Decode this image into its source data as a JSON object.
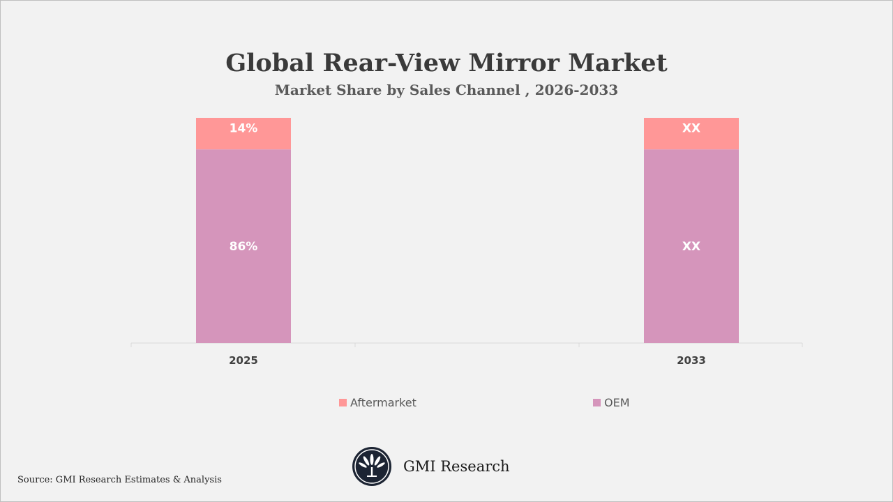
{
  "chart_data": {
    "type": "bar",
    "stacked": true,
    "title": "Global Rear-View Mirror Market",
    "subtitle": "Market Share by Sales Channel , 2026-2033",
    "categories": [
      "2025",
      "2033"
    ],
    "series": [
      {
        "name": "OEM",
        "values": [
          86,
          null
        ],
        "labels": [
          "86%",
          "XX"
        ],
        "color": "#d595bb"
      },
      {
        "name": "Aftermarket",
        "values": [
          14,
          null
        ],
        "labels": [
          "14%",
          "XX"
        ],
        "color": "#ff9797"
      }
    ],
    "ylim": [
      0,
      100
    ],
    "grid": false,
    "legend_position": "bottom"
  },
  "source": "Source: GMI Research Estimates & Analysis",
  "brand": {
    "name": "GMI Research"
  }
}
